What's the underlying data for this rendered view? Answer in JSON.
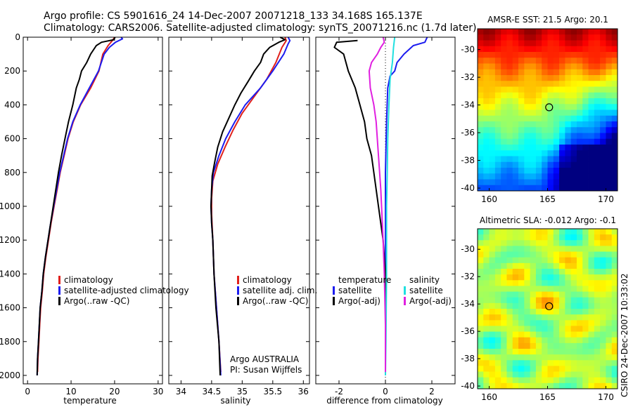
{
  "header": {
    "line1": "Argo profile: CS 5901616_24 14-Dec-2007 20071218_133 34.168S 165.137E",
    "line2": "Climatology: CARS2006. Satellite-adjusted climatology: synTS_20071216.nc (1.7d later)"
  },
  "footer": {
    "credit": "CSIRO 24-Dec-2007 10:33:02",
    "operator": "Argo AUSTRALIA",
    "pi": "PI: Susan Wijffels"
  },
  "colors": {
    "climatology": "#e0201c",
    "satellite": "#1c1cf0",
    "argo": "#000000",
    "sat_sal": "#20e0e0",
    "argo_sal_adj": "#e020e0"
  },
  "chart_data": [
    {
      "id": "temperature",
      "type": "line",
      "xlabel": "temperature",
      "xlim": [
        -1,
        31
      ],
      "ylim": [
        0,
        2050
      ],
      "y_inverted": true,
      "xticks": [
        0,
        10,
        20,
        30
      ],
      "yticks": [
        0,
        200,
        400,
        600,
        800,
        1000,
        1200,
        1400,
        1600,
        1800,
        2000
      ],
      "legend": [
        "climatology",
        "satellite-adjusted climatology",
        "Argo(..raw -QC)"
      ],
      "series": [
        {
          "name": "climatology",
          "color": "#e0201c",
          "points": [
            [
              20.0,
              0
            ],
            [
              19.5,
              20
            ],
            [
              18.5,
              50
            ],
            [
              17.3,
              100
            ],
            [
              16.4,
              200
            ],
            [
              14.5,
              300
            ],
            [
              12.2,
              400
            ],
            [
              10.5,
              500
            ],
            [
              9.3,
              600
            ],
            [
              8.4,
              700
            ],
            [
              7.5,
              800
            ],
            [
              6.8,
              900
            ],
            [
              6.1,
              1000
            ],
            [
              5.4,
              1100
            ],
            [
              4.8,
              1200
            ],
            [
              4.2,
              1300
            ],
            [
              3.7,
              1400
            ],
            [
              3.4,
              1500
            ],
            [
              3.0,
              1600
            ],
            [
              2.8,
              1700
            ],
            [
              2.6,
              1800
            ],
            [
              2.4,
              1900
            ],
            [
              2.3,
              1980
            ]
          ]
        },
        {
          "name": "satellite-adjusted climatology",
          "color": "#1c1cf0",
          "points": [
            [
              21.5,
              0
            ],
            [
              21.8,
              10
            ],
            [
              20.2,
              30
            ],
            [
              18.8,
              60
            ],
            [
              17.6,
              100
            ],
            [
              16.3,
              200
            ],
            [
              14.2,
              300
            ],
            [
              12.1,
              400
            ],
            [
              10.4,
              500
            ],
            [
              9.2,
              600
            ],
            [
              8.3,
              700
            ],
            [
              7.4,
              800
            ],
            [
              6.7,
              900
            ],
            [
              6.0,
              1000
            ],
            [
              5.3,
              1100
            ],
            [
              4.7,
              1200
            ],
            [
              4.1,
              1300
            ],
            [
              3.6,
              1400
            ],
            [
              3.3,
              1500
            ],
            [
              2.9,
              1600
            ],
            [
              2.7,
              1700
            ],
            [
              2.5,
              1800
            ],
            [
              2.3,
              1900
            ],
            [
              2.2,
              2000
            ]
          ]
        },
        {
          "name": "Argo(..raw -QC)",
          "color": "#000000",
          "points": [
            [
              20.1,
              0
            ],
            [
              19.8,
              15
            ],
            [
              17.0,
              30
            ],
            [
              15.8,
              50
            ],
            [
              14.5,
              100
            ],
            [
              13.6,
              150
            ],
            [
              12.4,
              200
            ],
            [
              11.9,
              250
            ],
            [
              11.2,
              300
            ],
            [
              10.4,
              400
            ],
            [
              9.4,
              500
            ],
            [
              8.6,
              600
            ],
            [
              7.8,
              700
            ],
            [
              7.1,
              800
            ],
            [
              6.5,
              900
            ],
            [
              5.9,
              1000
            ],
            [
              5.3,
              1100
            ],
            [
              4.7,
              1200
            ],
            [
              4.1,
              1300
            ],
            [
              3.6,
              1400
            ],
            [
              3.3,
              1500
            ],
            [
              2.9,
              1600
            ],
            [
              2.7,
              1700
            ],
            [
              2.5,
              1800
            ],
            [
              2.3,
              1900
            ],
            [
              2.2,
              2000
            ]
          ]
        }
      ]
    },
    {
      "id": "salinity",
      "type": "line",
      "xlabel": "salinity",
      "xlim": [
        33.8,
        36.1
      ],
      "ylim": [
        0,
        2050
      ],
      "y_inverted": true,
      "xticks": [
        34,
        34.5,
        35,
        35.5,
        36
      ],
      "legend": [
        "climatology",
        "satellite adj. clim.",
        "Argo(..raw -QC)"
      ],
      "series": [
        {
          "name": "climatology",
          "color": "#e0201c",
          "points": [
            [
              35.7,
              0
            ],
            [
              35.72,
              20
            ],
            [
              35.65,
              60
            ],
            [
              35.55,
              150
            ],
            [
              35.4,
              250
            ],
            [
              35.2,
              350
            ],
            [
              35.0,
              450
            ],
            [
              34.85,
              550
            ],
            [
              34.72,
              650
            ],
            [
              34.6,
              750
            ],
            [
              34.52,
              850
            ],
            [
              34.5,
              950
            ],
            [
              34.5,
              1050
            ],
            [
              34.52,
              1200
            ],
            [
              34.54,
              1400
            ],
            [
              34.58,
              1600
            ],
            [
              34.62,
              1800
            ],
            [
              34.65,
              1980
            ]
          ]
        },
        {
          "name": "satellite adj. clim.",
          "color": "#1c1cf0",
          "points": [
            [
              35.75,
              0
            ],
            [
              35.78,
              20
            ],
            [
              35.75,
              40
            ],
            [
              35.68,
              100
            ],
            [
              35.5,
              200
            ],
            [
              35.3,
              300
            ],
            [
              35.05,
              400
            ],
            [
              34.88,
              500
            ],
            [
              34.73,
              600
            ],
            [
              34.62,
              700
            ],
            [
              34.53,
              800
            ],
            [
              34.5,
              900
            ],
            [
              34.49,
              1000
            ],
            [
              34.5,
              1100
            ],
            [
              34.52,
              1200
            ],
            [
              34.54,
              1400
            ],
            [
              34.58,
              1600
            ],
            [
              34.62,
              1800
            ],
            [
              34.65,
              2000
            ]
          ]
        },
        {
          "name": "Argo(..raw -QC)",
          "color": "#000000",
          "points": [
            [
              35.62,
              0
            ],
            [
              35.7,
              15
            ],
            [
              35.6,
              30
            ],
            [
              35.45,
              60
            ],
            [
              35.35,
              100
            ],
            [
              35.3,
              150
            ],
            [
              35.2,
              200
            ],
            [
              35.1,
              260
            ],
            [
              34.98,
              330
            ],
            [
              34.88,
              400
            ],
            [
              34.78,
              480
            ],
            [
              34.68,
              560
            ],
            [
              34.6,
              650
            ],
            [
              34.55,
              740
            ],
            [
              34.51,
              820
            ],
            [
              34.5,
              900
            ],
            [
              34.49,
              1000
            ],
            [
              34.5,
              1100
            ],
            [
              34.52,
              1200
            ],
            [
              34.54,
              1400
            ],
            [
              34.57,
              1600
            ],
            [
              34.62,
              1800
            ],
            [
              34.64,
              2000
            ]
          ]
        }
      ]
    },
    {
      "id": "difference",
      "type": "line",
      "xlabel": "difference from climatology",
      "xlim": [
        -3,
        3
      ],
      "ylim": [
        0,
        2050
      ],
      "y_inverted": true,
      "xticks": [
        -2,
        0,
        2
      ],
      "legend_left_title": "temperature",
      "legend_left": [
        "satellite",
        "Argo(-adj)"
      ],
      "legend_right_title": "salinity",
      "legend_right": [
        "satellite",
        "Argo(-adj)"
      ],
      "series": [
        {
          "name": "temperature satellite",
          "color": "#1c1cf0",
          "points": [
            [
              1.8,
              0
            ],
            [
              1.7,
              30
            ],
            [
              1.2,
              50
            ],
            [
              0.8,
              100
            ],
            [
              0.5,
              150
            ],
            [
              0.4,
              200
            ],
            [
              0.2,
              230
            ],
            [
              0.1,
              300
            ],
            [
              0.05,
              500
            ],
            [
              0,
              800
            ],
            [
              0,
              1200
            ],
            [
              0,
              1600
            ],
            [
              0,
              2000
            ]
          ]
        },
        {
          "name": "temperature Argo(-adj)",
          "color": "#000000",
          "points": [
            [
              -1.2,
              20
            ],
            [
              -2.1,
              30
            ],
            [
              -2.2,
              60
            ],
            [
              -1.8,
              100
            ],
            [
              -1.6,
              200
            ],
            [
              -1.3,
              300
            ],
            [
              -1.1,
              400
            ],
            [
              -0.9,
              500
            ],
            [
              -0.8,
              600
            ],
            [
              -0.6,
              700
            ],
            [
              -0.5,
              800
            ],
            [
              -0.3,
              1000
            ],
            [
              -0.1,
              1200
            ],
            [
              0.0,
              1400
            ],
            [
              0.0,
              1600
            ],
            [
              0.0,
              1800
            ],
            [
              0.0,
              1980
            ]
          ]
        },
        {
          "name": "salinity satellite",
          "color": "#20e0e0",
          "points": [
            [
              0.4,
              0
            ],
            [
              0.35,
              60
            ],
            [
              0.3,
              150
            ],
            [
              0.2,
              250
            ],
            [
              0.15,
              400
            ],
            [
              0.1,
              600
            ],
            [
              0.08,
              800
            ],
            [
              0.05,
              1000
            ],
            [
              0.05,
              1400
            ],
            [
              0.02,
              1800
            ],
            [
              0.0,
              2000
            ]
          ]
        },
        {
          "name": "salinity Argo(-adj)",
          "color": "#e020e0",
          "points": [
            [
              -0.1,
              0
            ],
            [
              -0.05,
              30
            ],
            [
              -0.2,
              60
            ],
            [
              -0.35,
              100
            ],
            [
              -0.6,
              150
            ],
            [
              -0.7,
              200
            ],
            [
              -0.65,
              300
            ],
            [
              -0.5,
              400
            ],
            [
              -0.4,
              500
            ],
            [
              -0.3,
              700
            ],
            [
              -0.2,
              900
            ],
            [
              -0.1,
              1200
            ],
            [
              -0.05,
              1400
            ],
            [
              0.0,
              1700
            ],
            [
              0.0,
              1980
            ]
          ]
        }
      ]
    },
    {
      "id": "sst-map",
      "type": "heatmap",
      "title": "AMSR-E SST: 21.5 Argo: 20.1",
      "xlim": [
        159,
        171
      ],
      "ylim": [
        -40.2,
        -28.5
      ],
      "xticks": [
        160,
        165,
        170
      ],
      "yticks": [
        -30,
        -32,
        -34,
        -36,
        -38,
        -40
      ],
      "marker": [
        165.137,
        -34.168
      ]
    },
    {
      "id": "sla-map",
      "type": "heatmap",
      "title": "Altimetric SLA: -0.012 Argo: -0.1",
      "xlim": [
        159,
        171
      ],
      "ylim": [
        -40.2,
        -28.5
      ],
      "xticks": [
        160,
        165,
        170
      ],
      "yticks": [
        -30,
        -32,
        -34,
        -36,
        -38,
        -40
      ],
      "marker": [
        165.137,
        -34.168
      ]
    }
  ]
}
